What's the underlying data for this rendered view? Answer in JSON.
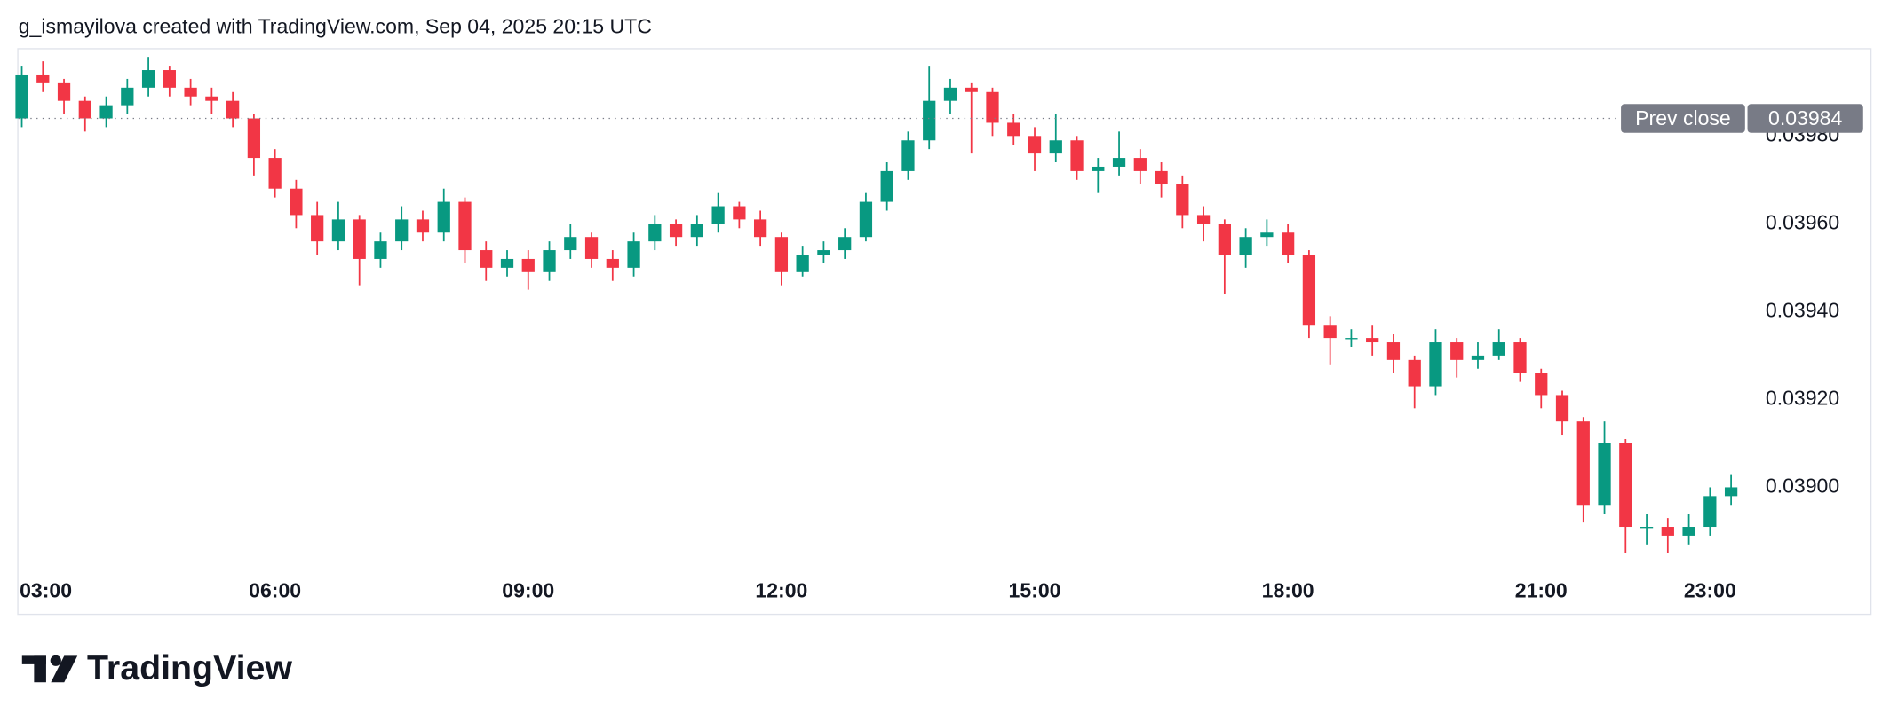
{
  "chart_data": {
    "type": "candlestick",
    "title": "g_ismayilova created with TradingView.com, Sep 04, 2025 20:15 UTC",
    "x": [
      3,
      3.25,
      3.5,
      3.75,
      4,
      4.25,
      4.5,
      4.75,
      5,
      5.25,
      5.5,
      5.75,
      6,
      6.25,
      6.5,
      6.75,
      7,
      7.25,
      7.5,
      7.75,
      8,
      8.25,
      8.5,
      8.75,
      9,
      9.25,
      9.5,
      9.75,
      10,
      10.25,
      10.5,
      10.75,
      11,
      11.25,
      11.5,
      11.75,
      12,
      12.25,
      12.5,
      12.75,
      13,
      13.25,
      13.5,
      13.75,
      14,
      14.25,
      14.5,
      14.75,
      15,
      15.25,
      15.5,
      15.75,
      16,
      16.25,
      16.5,
      16.75,
      17,
      17.25,
      17.5,
      17.75,
      18,
      18.25,
      18.5,
      18.75,
      19,
      19.25,
      19.5,
      19.75,
      20,
      20.25,
      20.5,
      20.75,
      21,
      21.25,
      21.5,
      21.75,
      22,
      22.25,
      22.5,
      22.75,
      23,
      23.25
    ],
    "open": [
      0.03984,
      0.03994,
      0.03992,
      0.03988,
      0.03984,
      0.03987,
      0.03991,
      0.03995,
      0.03991,
      0.03989,
      0.03988,
      0.03984,
      0.03975,
      0.03968,
      0.03962,
      0.03956,
      0.03961,
      0.03952,
      0.03956,
      0.03961,
      0.03958,
      0.03965,
      0.03954,
      0.0395,
      0.03952,
      0.03949,
      0.03954,
      0.03957,
      0.03952,
      0.0395,
      0.03956,
      0.0396,
      0.03957,
      0.0396,
      0.03964,
      0.03961,
      0.03957,
      0.03949,
      0.03953,
      0.03954,
      0.03957,
      0.03965,
      0.03972,
      0.03979,
      0.03988,
      0.03991,
      0.0399,
      0.03983,
      0.0398,
      0.03976,
      0.03979,
      0.03972,
      0.03973,
      0.03975,
      0.03972,
      0.03969,
      0.03962,
      0.0396,
      0.03953,
      0.03957,
      0.03958,
      0.03953,
      0.03937,
      0.03934,
      0.03934,
      0.03933,
      0.03929,
      0.03923,
      0.03933,
      0.03929,
      0.0393,
      0.03933,
      0.03926,
      0.03921,
      0.03915,
      0.03896,
      0.0391,
      0.03891,
      0.03891,
      0.03889,
      0.03891,
      0.03898
    ],
    "high": [
      0.03996,
      0.03997,
      0.03993,
      0.03989,
      0.03989,
      0.03993,
      0.03998,
      0.03996,
      0.03993,
      0.03991,
      0.0399,
      0.03985,
      0.03977,
      0.0397,
      0.03965,
      0.03965,
      0.03962,
      0.03958,
      0.03964,
      0.03963,
      0.03968,
      0.03966,
      0.03956,
      0.03954,
      0.03954,
      0.03956,
      0.0396,
      0.03958,
      0.03954,
      0.03958,
      0.03962,
      0.03961,
      0.03962,
      0.03967,
      0.03965,
      0.03963,
      0.03958,
      0.03955,
      0.03956,
      0.03959,
      0.03967,
      0.03974,
      0.03981,
      0.03996,
      0.03993,
      0.03992,
      0.03991,
      0.03985,
      0.03982,
      0.03985,
      0.0398,
      0.03975,
      0.03981,
      0.03977,
      0.03974,
      0.03971,
      0.03964,
      0.03961,
      0.03959,
      0.03961,
      0.0396,
      0.03954,
      0.03939,
      0.03936,
      0.03937,
      0.03935,
      0.0393,
      0.03936,
      0.03934,
      0.03933,
      0.03936,
      0.03934,
      0.03927,
      0.03922,
      0.03916,
      0.03915,
      0.03911,
      0.03894,
      0.03893,
      0.03894,
      0.039,
      0.03903
    ],
    "low": [
      0.03982,
      0.0399,
      0.03985,
      0.03981,
      0.03982,
      0.03985,
      0.03989,
      0.03989,
      0.03987,
      0.03985,
      0.03982,
      0.03971,
      0.03966,
      0.03959,
      0.03953,
      0.03954,
      0.03946,
      0.0395,
      0.03954,
      0.03956,
      0.03956,
      0.03951,
      0.03947,
      0.03948,
      0.03945,
      0.03947,
      0.03952,
      0.0395,
      0.03947,
      0.03948,
      0.03954,
      0.03955,
      0.03955,
      0.03958,
      0.03959,
      0.03955,
      0.03946,
      0.03948,
      0.03951,
      0.03952,
      0.03956,
      0.03963,
      0.0397,
      0.03977,
      0.03985,
      0.03976,
      0.0398,
      0.03978,
      0.03972,
      0.03974,
      0.0397,
      0.03967,
      0.03971,
      0.03969,
      0.03966,
      0.03959,
      0.03956,
      0.03944,
      0.0395,
      0.03955,
      0.03951,
      0.03934,
      0.03928,
      0.03932,
      0.0393,
      0.03926,
      0.03918,
      0.03921,
      0.03925,
      0.03927,
      0.03929,
      0.03924,
      0.03918,
      0.03912,
      0.03892,
      0.03894,
      0.03885,
      0.03887,
      0.03885,
      0.03887,
      0.03889,
      0.03896
    ],
    "close": [
      0.03994,
      0.03992,
      0.03988,
      0.03984,
      0.03987,
      0.03991,
      0.03995,
      0.03991,
      0.03989,
      0.03988,
      0.03984,
      0.03975,
      0.03968,
      0.03962,
      0.03956,
      0.03961,
      0.03952,
      0.03956,
      0.03961,
      0.03958,
      0.03965,
      0.03954,
      0.0395,
      0.03952,
      0.03949,
      0.03954,
      0.03957,
      0.03952,
      0.0395,
      0.03956,
      0.0396,
      0.03957,
      0.0396,
      0.03964,
      0.03961,
      0.03957,
      0.03949,
      0.03953,
      0.03954,
      0.03957,
      0.03965,
      0.03972,
      0.03979,
      0.03988,
      0.03991,
      0.0399,
      0.03983,
      0.0398,
      0.03976,
      0.03979,
      0.03972,
      0.03973,
      0.03975,
      0.03972,
      0.03969,
      0.03962,
      0.0396,
      0.03953,
      0.03957,
      0.03958,
      0.03953,
      0.03937,
      0.03934,
      0.03934,
      0.03933,
      0.03929,
      0.03923,
      0.03933,
      0.03929,
      0.0393,
      0.03933,
      0.03926,
      0.03921,
      0.03915,
      0.03896,
      0.0391,
      0.03891,
      0.03891,
      0.03889,
      0.03891,
      0.03898,
      0.039
    ],
    "up_color": "#089981",
    "down_color": "#f23645",
    "xlim": [
      2.96,
      24.9
    ],
    "xticks": [
      {
        "value": 3,
        "label": "03:00"
      },
      {
        "value": 6,
        "label": "06:00"
      },
      {
        "value": 9,
        "label": "09:00"
      },
      {
        "value": 12,
        "label": "12:00"
      },
      {
        "value": 15,
        "label": "15:00"
      },
      {
        "value": 18,
        "label": "18:00"
      },
      {
        "value": 21,
        "label": "21:00"
      },
      {
        "value": 23,
        "label": "23:00"
      }
    ],
    "ylim": [
      0.0388,
      0.04
    ],
    "yticks": [
      {
        "value": 0.039,
        "label": "0.03900"
      },
      {
        "value": 0.0392,
        "label": "0.03920"
      },
      {
        "value": 0.0394,
        "label": "0.03940"
      },
      {
        "value": 0.0396,
        "label": "0.03960"
      },
      {
        "value": 0.0398,
        "label": "0.03980"
      }
    ],
    "prev_close": {
      "label": "Prev close",
      "value": 0.03984
    }
  },
  "footer": {
    "brand": "TradingView"
  }
}
